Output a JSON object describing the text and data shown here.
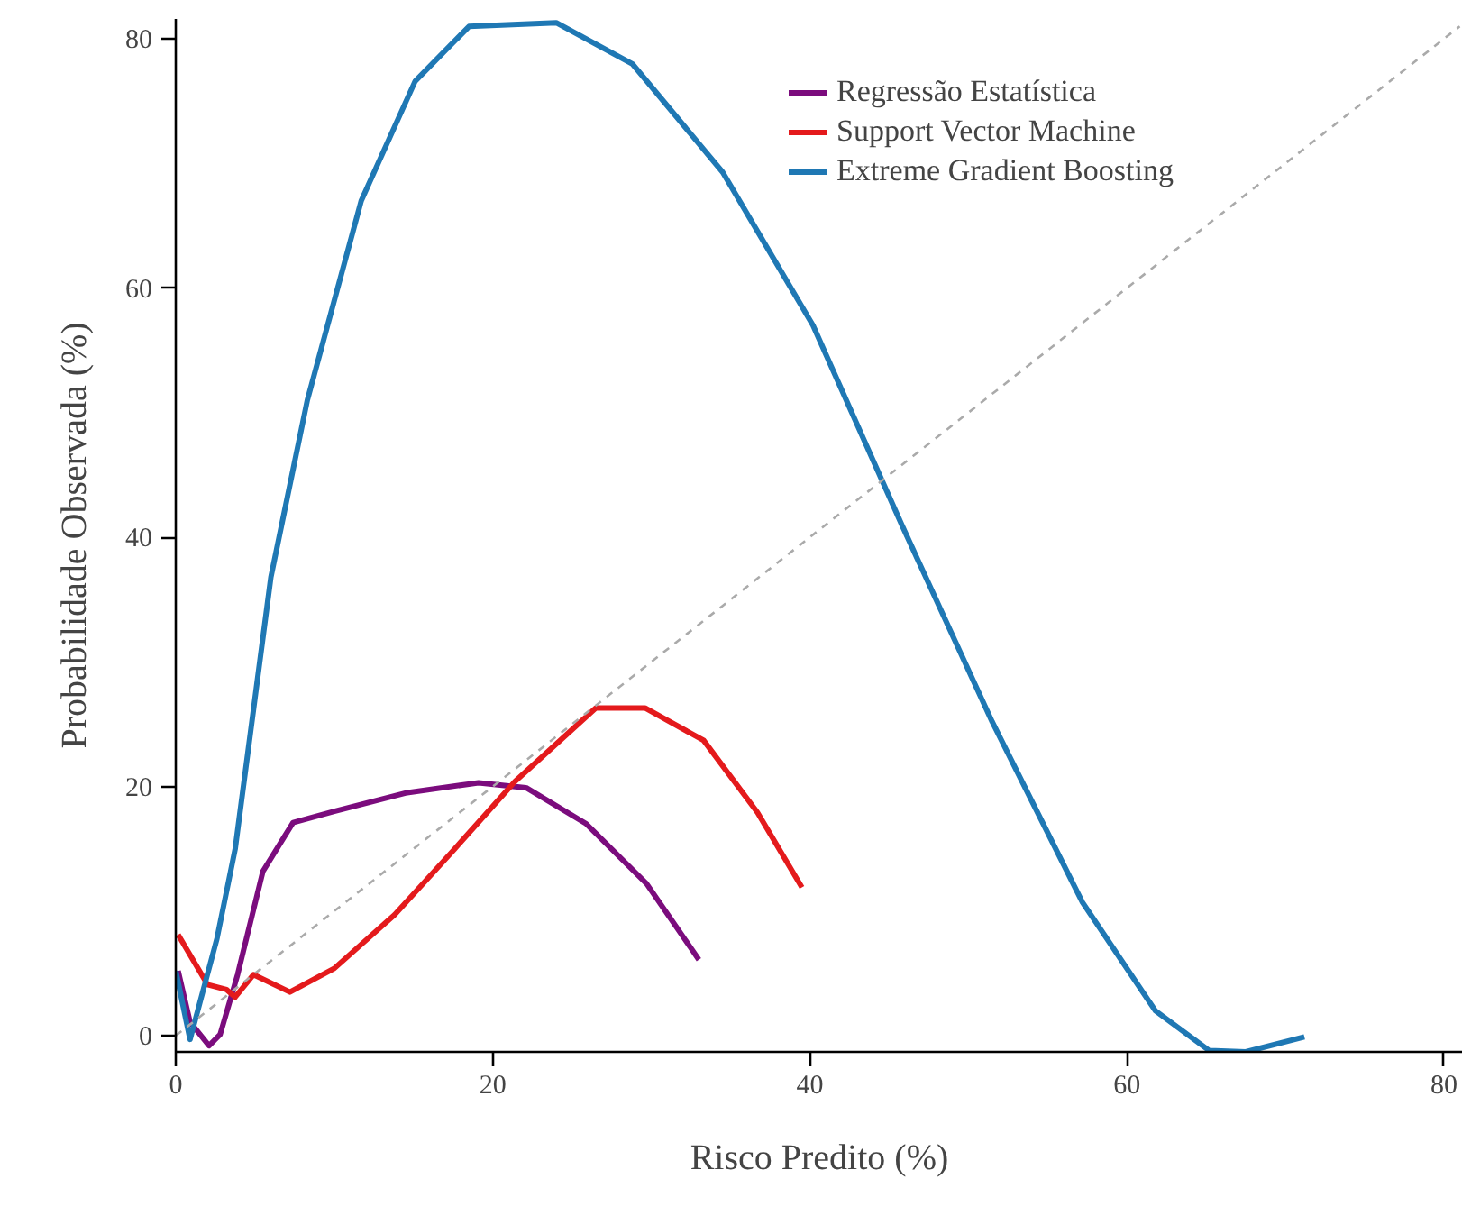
{
  "chart_data": {
    "type": "line",
    "xlabel": "Risco Predito (%)",
    "ylabel": "Probabilidade Observada (%)",
    "xlim": [
      0,
      81.2
    ],
    "ylim": [
      -1.3,
      81.6
    ],
    "xticks": [
      0,
      20,
      40,
      60,
      80
    ],
    "yticks": [
      0,
      20,
      40,
      60,
      80
    ],
    "grid": false,
    "legend": "top right",
    "marker": "none",
    "line_style": "solid",
    "series": [
      {
        "name": "Regressão Estatística",
        "color": "#7b0c7d",
        "x": [
          0.15,
          0.9,
          2.1,
          2.8,
          3.9,
          5.5,
          7.4,
          10,
          14.6,
          19.1,
          22.1,
          25.9,
          29.7,
          33
        ],
        "values": [
          5.2,
          1.1,
          -0.8,
          0.1,
          4.9,
          13.2,
          17.1,
          18,
          19.5,
          20.3,
          19.9,
          17,
          12.2,
          6.1
        ]
      },
      {
        "name": "Support Vector Machine",
        "color": "#e41a1c",
        "x": [
          0.15,
          2,
          3.2,
          3.75,
          4.9,
          7.2,
          10,
          13.8,
          17.6,
          21.4,
          26.5,
          29.6,
          33.3,
          36.7,
          39.5
        ],
        "values": [
          8.1,
          4.1,
          3.7,
          3.1,
          4.9,
          3.5,
          5.4,
          9.7,
          15,
          20.4,
          26.3,
          26.3,
          23.7,
          17.9,
          11.9
        ]
      },
      {
        "name": "Extreme Gradient Boosting",
        "color": "#1f78b4",
        "x": [
          0,
          0.9,
          2.6,
          3.75,
          6,
          8.3,
          11.7,
          15.1,
          18.5,
          24,
          28.8,
          34.5,
          40.2,
          45.8,
          51.5,
          57.2,
          61.8,
          65.2,
          67.5,
          71.2
        ],
        "values": [
          5.2,
          -0.3,
          7.8,
          15,
          36.8,
          51,
          67,
          76.6,
          81,
          81.3,
          78,
          69.3,
          57,
          41,
          25.2,
          10.7,
          2,
          -1.2,
          -1.3,
          -0.1
        ]
      },
      {
        "type": "line",
        "color": "#aaaaaa",
        "line_style": "dashed",
        "x": [
          0,
          81
        ],
        "values": [
          0,
          81
        ]
      }
    ]
  }
}
